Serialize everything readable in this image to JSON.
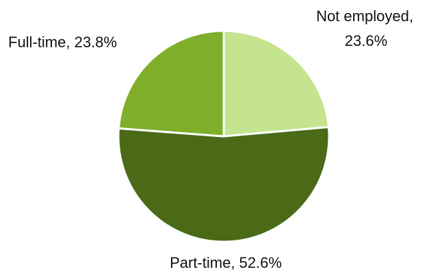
{
  "chart_data": {
    "type": "pie",
    "slices": [
      {
        "label": "Not employed",
        "value": 23.6,
        "display": "23.6%",
        "color": "#c5e48f"
      },
      {
        "label": "Part-time",
        "value": 52.6,
        "display": "52.6%",
        "color": "#4a6a18"
      },
      {
        "label": "Full-time",
        "value": 23.8,
        "display": "23.8%",
        "color": "#7faf2a"
      }
    ],
    "start_angle_deg": 0,
    "direction": "clockwise",
    "show_percent_labels": true,
    "legend": "none",
    "title": "",
    "background": "#ffffff"
  }
}
